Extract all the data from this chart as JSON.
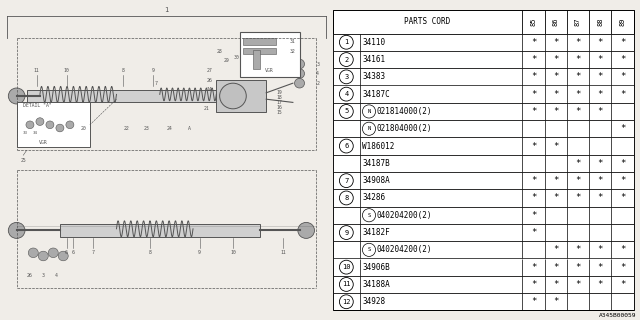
{
  "bg_color": "#f0ede8",
  "table_bg": "#ffffff",
  "col_headers": [
    "PARTS CORD",
    "85",
    "86",
    "87",
    "88",
    "89"
  ],
  "rows": [
    {
      "num": "1",
      "circle": true,
      "special": "",
      "part": "34110",
      "marks": [
        true,
        true,
        true,
        true,
        true
      ]
    },
    {
      "num": "2",
      "circle": true,
      "special": "",
      "part": "34161",
      "marks": [
        true,
        true,
        true,
        true,
        true
      ]
    },
    {
      "num": "3",
      "circle": true,
      "special": "",
      "part": "34383",
      "marks": [
        true,
        true,
        true,
        true,
        true
      ]
    },
    {
      "num": "4",
      "circle": true,
      "special": "",
      "part": "34187C",
      "marks": [
        true,
        true,
        true,
        true,
        true
      ]
    },
    {
      "num": "5",
      "circle": true,
      "special": "N",
      "part": "021814000(2)",
      "marks": [
        true,
        true,
        true,
        true,
        false
      ]
    },
    {
      "num": "",
      "circle": false,
      "special": "N",
      "part": "021804000(2)",
      "marks": [
        false,
        false,
        false,
        false,
        true
      ]
    },
    {
      "num": "6",
      "circle": true,
      "special": "",
      "part": "W186012",
      "marks": [
        true,
        true,
        false,
        false,
        false
      ]
    },
    {
      "num": "",
      "circle": false,
      "special": "",
      "part": "34187B",
      "marks": [
        false,
        false,
        true,
        true,
        true
      ]
    },
    {
      "num": "7",
      "circle": true,
      "special": "",
      "part": "34908A",
      "marks": [
        true,
        true,
        true,
        true,
        true
      ]
    },
    {
      "num": "8",
      "circle": true,
      "special": "",
      "part": "34286",
      "marks": [
        true,
        true,
        true,
        true,
        true
      ]
    },
    {
      "num": "",
      "circle": false,
      "special": "S",
      "part": "040204200(2)",
      "marks": [
        true,
        false,
        false,
        false,
        false
      ]
    },
    {
      "num": "9",
      "circle": true,
      "special": "",
      "part": "34182F",
      "marks": [
        true,
        false,
        false,
        false,
        false
      ]
    },
    {
      "num": "",
      "circle": false,
      "special": "S",
      "part": "040204200(2)",
      "marks": [
        false,
        true,
        true,
        true,
        true
      ]
    },
    {
      "num": "10",
      "circle": true,
      "special": "",
      "part": "34906B",
      "marks": [
        true,
        true,
        true,
        true,
        true
      ]
    },
    {
      "num": "11",
      "circle": true,
      "special": "",
      "part": "34188A",
      "marks": [
        true,
        true,
        true,
        true,
        true
      ]
    },
    {
      "num": "12",
      "circle": true,
      "special": "",
      "part": "34928",
      "marks": [
        true,
        true,
        false,
        false,
        false
      ]
    }
  ],
  "diagram_label": "A345B00059",
  "line_color": "#555555",
  "light_color": "#aaaaaa"
}
